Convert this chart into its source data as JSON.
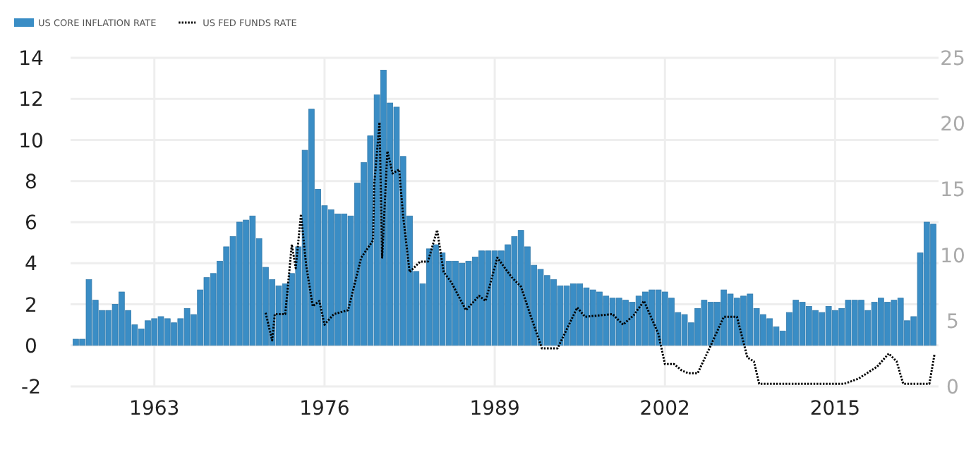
{
  "chart_data": {
    "type": "bar",
    "legend": "top left",
    "grid": true,
    "line_style": "dotted",
    "xlim": [
      1956.6,
      2022.9
    ],
    "xticks": [
      1963,
      1976,
      1989,
      2002,
      2015
    ],
    "ylim": [
      -2,
      14
    ],
    "yticks": [
      -2,
      0,
      2,
      4,
      6,
      8,
      10,
      12,
      14
    ],
    "y2lim": [
      0,
      25
    ],
    "y2ticks": [
      0,
      5,
      10,
      15,
      20,
      25
    ],
    "x": [
      1957,
      1957.5,
      1958,
      1958.5,
      1959,
      1959.5,
      1960,
      1960.5,
      1961,
      1961.5,
      1962,
      1962.5,
      1963,
      1963.5,
      1964,
      1964.5,
      1965,
      1965.5,
      1966,
      1966.5,
      1967,
      1967.5,
      1968,
      1968.5,
      1969,
      1969.5,
      1970,
      1970.5,
      1971,
      1971.5,
      1972,
      1972.5,
      1973,
      1973.5,
      1974,
      1974.5,
      1975,
      1975.5,
      1976,
      1976.5,
      1977,
      1977.5,
      1978,
      1978.5,
      1979,
      1979.5,
      1980,
      1980.5,
      1981,
      1981.5,
      1982,
      1982.5,
      1983,
      1983.5,
      1984,
      1984.5,
      1985,
      1985.5,
      1986,
      1986.5,
      1987,
      1987.5,
      1988,
      1988.5,
      1989,
      1989.5,
      1990,
      1990.5,
      1991,
      1991.5,
      1992,
      1992.5,
      1993,
      1993.5,
      1994,
      1994.5,
      1995,
      1995.5,
      1996,
      1996.5,
      1997,
      1997.5,
      1998,
      1998.5,
      1999,
      1999.5,
      2000,
      2000.5,
      2001,
      2001.5,
      2002,
      2002.5,
      2003,
      2003.5,
      2004,
      2004.5,
      2005,
      2005.5,
      2006,
      2006.5,
      2007,
      2007.5,
      2008,
      2008.5,
      2009,
      2009.5,
      2010,
      2010.5,
      2011,
      2011.5,
      2012,
      2012.5,
      2013,
      2013.5,
      2014,
      2014.5,
      2015,
      2015.5,
      2016,
      2016.5,
      2017,
      2017.5,
      2018,
      2018.5,
      2019,
      2019.5,
      2020,
      2020.5,
      2021,
      2021.5,
      2022,
      2022.5
    ],
    "series": [
      {
        "name": "US CORE INFLATION RATE",
        "color": "#3a8dc5",
        "values": [
          0.3,
          0.3,
          3.2,
          2.2,
          1.7,
          1.7,
          2.0,
          2.6,
          1.7,
          1.0,
          0.8,
          1.2,
          1.3,
          1.4,
          1.3,
          1.1,
          1.3,
          1.8,
          1.5,
          2.7,
          3.3,
          3.5,
          4.1,
          4.8,
          5.3,
          6.0,
          6.1,
          6.3,
          5.2,
          3.8,
          3.2,
          2.9,
          3.0,
          3.5,
          4.8,
          9.5,
          11.5,
          7.6,
          6.8,
          6.6,
          6.4,
          6.4,
          6.3,
          7.9,
          8.9,
          10.2,
          12.2,
          13.4,
          11.8,
          11.6,
          9.2,
          6.3,
          3.6,
          3.0,
          4.7,
          4.9,
          4.5,
          4.1,
          4.1,
          4.0,
          4.1,
          4.3,
          4.6,
          4.6,
          4.6,
          4.6,
          4.9,
          5.3,
          5.6,
          4.8,
          3.9,
          3.7,
          3.4,
          3.2,
          2.9,
          2.9,
          3.0,
          3.0,
          2.8,
          2.7,
          2.6,
          2.4,
          2.3,
          2.3,
          2.2,
          2.1,
          2.4,
          2.6,
          2.7,
          2.7,
          2.6,
          2.3,
          1.6,
          1.5,
          1.1,
          1.8,
          2.2,
          2.1,
          2.1,
          2.7,
          2.5,
          2.3,
          2.4,
          2.5,
          1.8,
          1.5,
          1.3,
          0.9,
          0.7,
          1.6,
          2.2,
          2.1,
          1.9,
          1.7,
          1.6,
          1.9,
          1.7,
          1.8,
          2.2,
          2.2,
          2.2,
          1.7,
          2.1,
          2.3,
          2.1,
          2.2,
          2.3,
          1.2,
          1.4,
          4.5,
          6.0,
          5.9
        ]
      },
      {
        "name": "US FED FUNDS RATE",
        "type": "line",
        "axis": "y2",
        "color": "#000000",
        "x": [
          1971.5,
          1972.0,
          1972.2,
          1973.0,
          1973.5,
          1973.8,
          1974.2,
          1974.6,
          1975.1,
          1975.6,
          1976.0,
          1976.7,
          1977.8,
          1978.8,
          1979.7,
          1979.8,
          1980.2,
          1980.4,
          1980.8,
          1981.2,
          1981.7,
          1982.0,
          1982.5,
          1983.3,
          1983.9,
          1984.6,
          1985.1,
          1985.7,
          1986.8,
          1987.8,
          1988.3,
          1989.2,
          1990.3,
          1991.0,
          1991.7,
          1992.6,
          1993.8,
          1995.3,
          1995.9,
          1998.0,
          1998.8,
          1999.6,
          2000.4,
          2001.5,
          2002.0,
          2002.7,
          2003.3,
          2003.8,
          2004.5,
          2005.4,
          2006.5,
          2007.5,
          2008.3,
          2008.8,
          2009.2,
          2015.7,
          2016.8,
          2018.2,
          2019.1,
          2019.7,
          2020.2,
          2022.2,
          2022.6
        ],
        "values": [
          5.6,
          3.5,
          5.5,
          5.5,
          10.8,
          9.0,
          13.1,
          9.2,
          6.1,
          6.5,
          4.7,
          5.5,
          5.8,
          9.8,
          11.1,
          15.4,
          20.1,
          9.8,
          17.9,
          16.2,
          16.5,
          13.0,
          8.7,
          9.5,
          9.5,
          11.9,
          8.7,
          7.9,
          5.8,
          6.9,
          6.5,
          9.8,
          8.3,
          7.6,
          5.5,
          2.9,
          2.9,
          6.0,
          5.3,
          5.5,
          4.7,
          5.4,
          6.5,
          4.0,
          1.7,
          1.7,
          1.2,
          1.0,
          1.0,
          2.9,
          5.3,
          5.3,
          2.2,
          1.9,
          0.2,
          0.2,
          0.6,
          1.5,
          2.5,
          1.9,
          0.2,
          0.2,
          2.5
        ]
      }
    ]
  }
}
